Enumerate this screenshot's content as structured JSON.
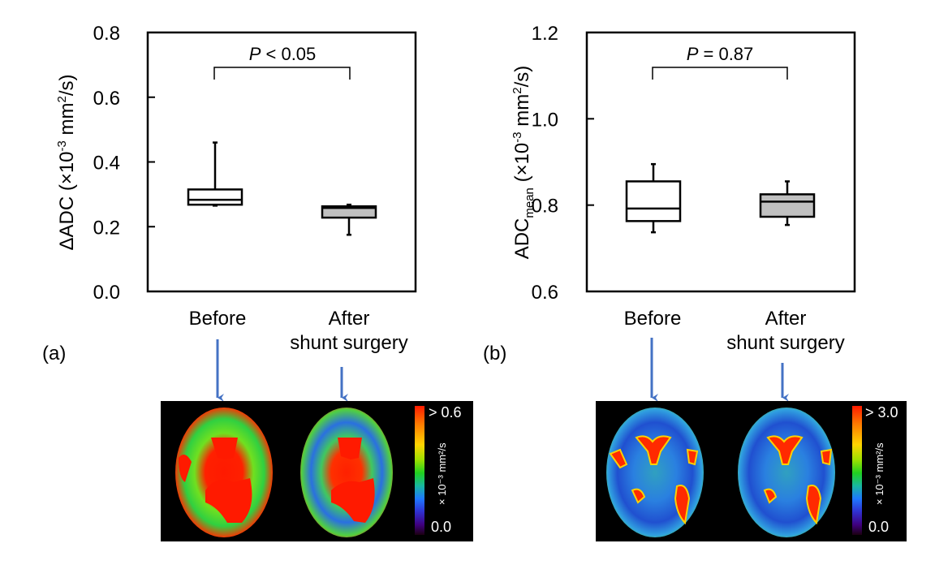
{
  "figure": {
    "panels": [
      {
        "panel_label": "(a)",
        "group_labels": {
          "before": "Before",
          "after_line1": "After",
          "after_line2": "shunt surgery"
        },
        "colorbar": {
          "max_label": "> 0.6",
          "min_label": "0.0",
          "unit": "× 10⁻³ mm²/s"
        },
        "brain_images": [
          "before-brain-delta-adc-map",
          "after-brain-delta-adc-map"
        ]
      },
      {
        "panel_label": "(b)",
        "group_labels": {
          "before": "Before",
          "after_line1": "After",
          "after_line2": "shunt surgery"
        },
        "colorbar": {
          "max_label": "> 3.0",
          "min_label": "0.0",
          "unit": "× 10⁻³ mm²/s"
        },
        "brain_images": [
          "before-brain-adc-mean-map",
          "after-brain-adc-mean-map"
        ]
      }
    ],
    "arrow_color": "#4472c4",
    "box_fill_before": "#ffffff",
    "box_fill_after": "#c0c0c0"
  },
  "chart_data": [
    {
      "type": "box",
      "title": "",
      "ylabel": "ΔADC (×10⁻³ mm²/s)",
      "ylabel_parts": {
        "main": "ΔADC (×10",
        "sup": "-3",
        "mid": " mm",
        "sup2": "2",
        "end": "/s)"
      },
      "xlabel": "",
      "ylim": [
        0.0,
        0.8
      ],
      "yticks": [
        0.0,
        0.2,
        0.4,
        0.6,
        0.8
      ],
      "ytick_labels": [
        "0.0",
        "0.2",
        "0.4",
        "0.6",
        "0.8"
      ],
      "categories": [
        "Before",
        "After shunt surgery"
      ],
      "series": [
        {
          "name": "Before",
          "whisker_low": 0.265,
          "q1": 0.268,
          "median": 0.283,
          "q3": 0.315,
          "whisker_high": 0.46,
          "fill": "#ffffff"
        },
        {
          "name": "After shunt surgery",
          "whisker_low": 0.175,
          "q1": 0.228,
          "median": 0.258,
          "q3": 0.263,
          "whisker_high": 0.268,
          "fill": "#c0c0c0"
        }
      ],
      "annotation": {
        "italic": "P",
        "rest": " < 0.05"
      },
      "grid": false,
      "legend": "none"
    },
    {
      "type": "box",
      "title": "",
      "ylabel": "ADCmean (×10⁻³ mm²/s)",
      "ylabel_parts": {
        "main": "ADC",
        "sub": "mean",
        "mid0": " (×10",
        "sup": "-3",
        "mid": " mm",
        "sup2": "2",
        "end": "/s)"
      },
      "xlabel": "",
      "ylim": [
        0.6,
        1.2
      ],
      "yticks": [
        0.6,
        0.8,
        1.0,
        1.2
      ],
      "ytick_labels": [
        "0.6",
        "0.8",
        "1.0",
        "1.2"
      ],
      "categories": [
        "Before",
        "After shunt surgery"
      ],
      "series": [
        {
          "name": "Before",
          "whisker_low": 0.737,
          "q1": 0.763,
          "median": 0.792,
          "q3": 0.855,
          "whisker_high": 0.895,
          "fill": "#ffffff"
        },
        {
          "name": "After shunt surgery",
          "whisker_low": 0.754,
          "q1": 0.773,
          "median": 0.808,
          "q3": 0.825,
          "whisker_high": 0.855,
          "fill": "#c0c0c0"
        }
      ],
      "annotation": {
        "italic": "P",
        "rest": " = 0.87"
      },
      "grid": false,
      "legend": "none"
    }
  ]
}
